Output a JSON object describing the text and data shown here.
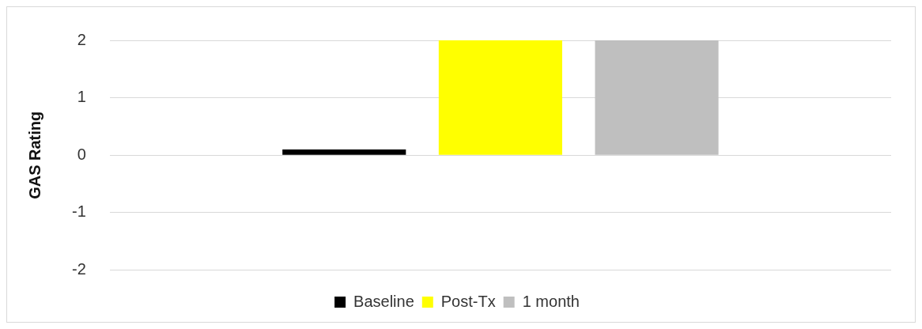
{
  "chart_data": {
    "type": "bar",
    "ylabel": "GAS Rating",
    "categories": [
      null
    ],
    "series": [
      {
        "name": "Baseline",
        "color": "#000000",
        "values": [
          0.1
        ]
      },
      {
        "name": "Post-Tx",
        "color": "#ffff00",
        "values": [
          2
        ]
      },
      {
        "name": "1 month",
        "color": "#bfbfbf",
        "values": [
          2
        ]
      }
    ],
    "ylim": [
      -2,
      2
    ],
    "yticks": [
      -2,
      -1,
      0,
      1,
      2
    ],
    "grid": "y",
    "legend": "bottom"
  }
}
